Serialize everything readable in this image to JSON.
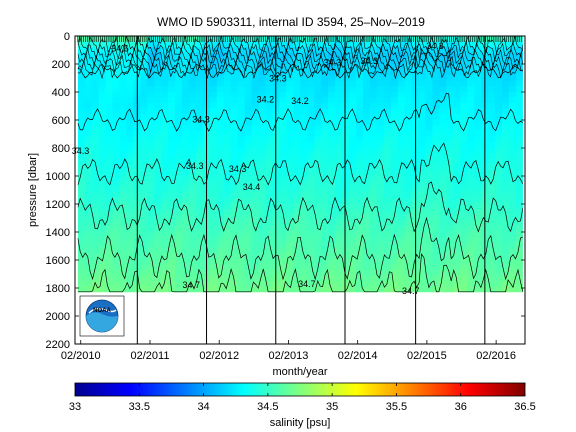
{
  "chart_data": {
    "type": "heatmap",
    "title": "WMO ID 5903311, internal ID 3594, 25–Nov–2019",
    "xlabel": "month/year",
    "ylabel": "pressure [dbar]",
    "x_tick_labels": [
      "02/2010",
      "02/2011",
      "02/2012",
      "02/2013",
      "02/2014",
      "02/2015",
      "02/2016"
    ],
    "x_tick_times": [
      2010.083,
      2011.083,
      2012.083,
      2013.083,
      2014.083,
      2015.083,
      2016.083
    ],
    "xlim": [
      2010.0,
      2016.5
    ],
    "data_time_range": [
      2010.04,
      2016.47
    ],
    "y_ticks": [
      0,
      200,
      400,
      600,
      800,
      1000,
      1200,
      1400,
      1600,
      1800,
      2000,
      2200
    ],
    "ylim": [
      2200,
      0
    ],
    "y_reversed": true,
    "data_max_pressure": 1830,
    "vertical_lines_time": [
      2010.9,
      2011.9,
      2012.9,
      2013.9,
      2014.92,
      2015.92
    ],
    "contour_levels": [
      34.1,
      34.2,
      34.3,
      34.4,
      34.5,
      34.6,
      34.7
    ],
    "contour_labels": [
      {
        "text": "34.6",
        "t": 2010.65,
        "p": 90
      },
      {
        "text": "34.3",
        "t": 2010.08,
        "p": 820
      },
      {
        "text": "34.3",
        "t": 2011.82,
        "p": 595
      },
      {
        "text": "34.3",
        "t": 2011.73,
        "p": 930
      },
      {
        "text": "34.3",
        "t": 2012.35,
        "p": 950
      },
      {
        "text": "34.4",
        "t": 2012.55,
        "p": 1080
      },
      {
        "text": "34.3",
        "t": 2012.93,
        "p": 305
      },
      {
        "text": "34.2",
        "t": 2012.75,
        "p": 455
      },
      {
        "text": "34.2",
        "t": 2013.25,
        "p": 465
      },
      {
        "text": "34.3",
        "t": 2013.72,
        "p": 190
      },
      {
        "text": "34.3",
        "t": 2014.25,
        "p": 180
      },
      {
        "text": "34.3",
        "t": 2015.2,
        "p": 70
      },
      {
        "text": "34.7",
        "t": 2011.68,
        "p": 1780
      },
      {
        "text": "34.7",
        "t": 2013.35,
        "p": 1770
      },
      {
        "text": "34.7",
        "t": 2014.85,
        "p": 1820
      }
    ],
    "colorbar": {
      "label": "salinity [psu]",
      "range": [
        33,
        36.5
      ],
      "ticks": [
        33,
        33.5,
        34,
        34.5,
        35,
        35.5,
        36,
        36.5
      ],
      "colormap": "jet"
    },
    "logo": {
      "text": "NOAA"
    }
  }
}
